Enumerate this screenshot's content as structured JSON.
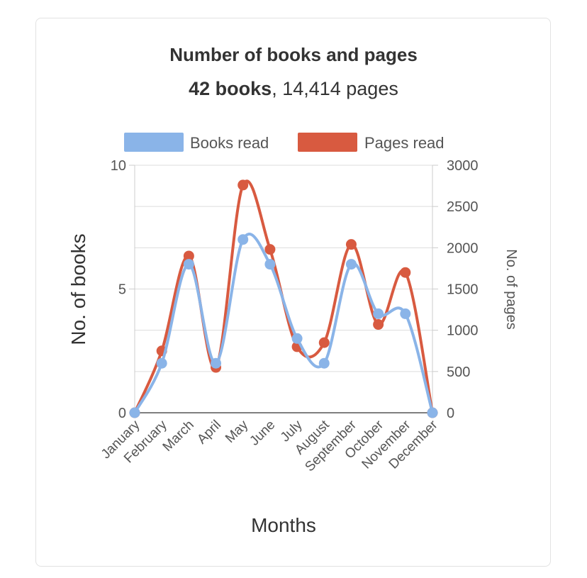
{
  "chart_data": {
    "type": "line",
    "title": "Number of books and pages",
    "subtitle_bold": "42 books",
    "subtitle_rest": ", 14,414 pages",
    "xlabel": "Months",
    "ylabel": "No. of books",
    "y2label": "No. of pages",
    "categories": [
      "January",
      "February",
      "March",
      "April",
      "May",
      "June",
      "July",
      "August",
      "September",
      "October",
      "November",
      "December"
    ],
    "ylim": [
      0,
      10
    ],
    "y2lim": [
      0,
      3000
    ],
    "yticks": [
      0,
      5,
      10
    ],
    "y2ticks": [
      0,
      500,
      1000,
      1500,
      2000,
      2500,
      3000
    ],
    "legend_position": "top",
    "series": [
      {
        "name": "Books read",
        "axis": "left",
        "color": "#8ab4e8",
        "values": [
          0,
          2,
          6,
          2,
          7,
          6,
          3,
          2,
          6,
          4,
          4,
          0
        ]
      },
      {
        "name": "Pages read",
        "axis": "right",
        "color": "#d85a40",
        "values": [
          0,
          750,
          1900,
          550,
          2760,
          1980,
          800,
          850,
          2040,
          1070,
          1700,
          0
        ]
      }
    ]
  }
}
